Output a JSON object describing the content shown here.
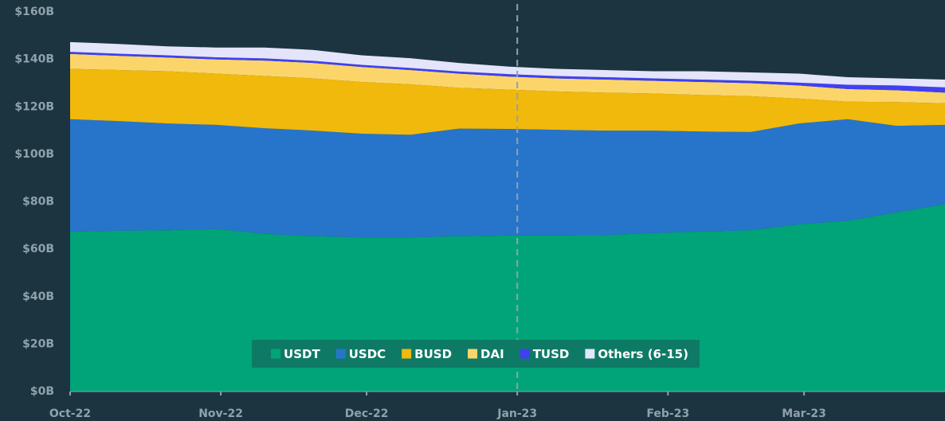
{
  "chart_data": {
    "type": "stacked_area",
    "x": [
      0,
      10,
      20,
      30,
      40,
      50,
      60,
      70,
      80,
      90,
      100,
      110,
      120,
      130,
      140,
      150,
      160,
      170,
      180
    ],
    "xlim": [
      0,
      180
    ],
    "xticks": [
      {
        "value": 0,
        "label": "Oct-22"
      },
      {
        "value": 31,
        "label": "Nov-22"
      },
      {
        "value": 61,
        "label": "Dec-22"
      },
      {
        "value": 92,
        "label": "Jan-23"
      },
      {
        "value": 123,
        "label": "Feb-23"
      },
      {
        "value": 151,
        "label": "Mar-23"
      }
    ],
    "ylim": [
      0,
      160
    ],
    "yticks": [
      {
        "value": 0,
        "label": "$0B"
      },
      {
        "value": 20,
        "label": "$20B"
      },
      {
        "value": 40,
        "label": "$40B"
      },
      {
        "value": 60,
        "label": "$60B"
      },
      {
        "value": 80,
        "label": "$80B"
      },
      {
        "value": 100,
        "label": "$100B"
      },
      {
        "value": 120,
        "label": "$120B"
      },
      {
        "value": 140,
        "label": "$140B"
      },
      {
        "value": 160,
        "label": "$160B"
      }
    ],
    "marker_x": 92,
    "grid": false,
    "legend": "bottom",
    "series": [
      {
        "name": "USDT",
        "color": "#00a478",
        "values": [
          67.4,
          67.8,
          68,
          68.5,
          66.5,
          65.5,
          65,
          65,
          65.5,
          65.8,
          65.8,
          66,
          66.8,
          67.5,
          68,
          70.5,
          72,
          75.5,
          79
        ]
      },
      {
        "name": "USDC",
        "color": "#2775ca",
        "values": [
          47.4,
          46.2,
          45,
          43.9,
          44.5,
          44.5,
          43.7,
          43.2,
          45.3,
          44.9,
          44.5,
          44,
          43.2,
          42.1,
          41.4,
          42.5,
          42.8,
          36.5,
          33.4
        ]
      },
      {
        "name": "BUSD",
        "color": "#f0b90b",
        "values": [
          21.2,
          21.5,
          22,
          21.6,
          22,
          22,
          21.8,
          21.3,
          17.2,
          16.6,
          16.2,
          16,
          15.6,
          15.4,
          15.1,
          10.5,
          7.4,
          10,
          9.1
        ]
      },
      {
        "name": "DAI",
        "color": "#fcd56a",
        "values": [
          6.3,
          6,
          5.8,
          6,
          6.5,
          6.5,
          6.3,
          6,
          6,
          5.5,
          5.5,
          5.5,
          5.4,
          5.5,
          5.5,
          5.5,
          5.3,
          5,
          4.5
        ]
      },
      {
        "name": "TUSD",
        "color": "#4040f2",
        "values": [
          0.9,
          0.9,
          0.9,
          0.9,
          0.9,
          0.9,
          0.9,
          0.9,
          0.9,
          1,
          1,
          1,
          1,
          1,
          1,
          1.2,
          1.8,
          2,
          2.2
        ]
      },
      {
        "name": "Others (6-15)",
        "color": "#e4e4fa",
        "values": [
          4.1,
          4.1,
          3.8,
          4.1,
          4.6,
          4.6,
          4,
          4.1,
          3.6,
          3.2,
          3,
          3,
          3,
          3.5,
          3.5,
          3.8,
          3.2,
          3,
          3.3
        ]
      }
    ]
  }
}
